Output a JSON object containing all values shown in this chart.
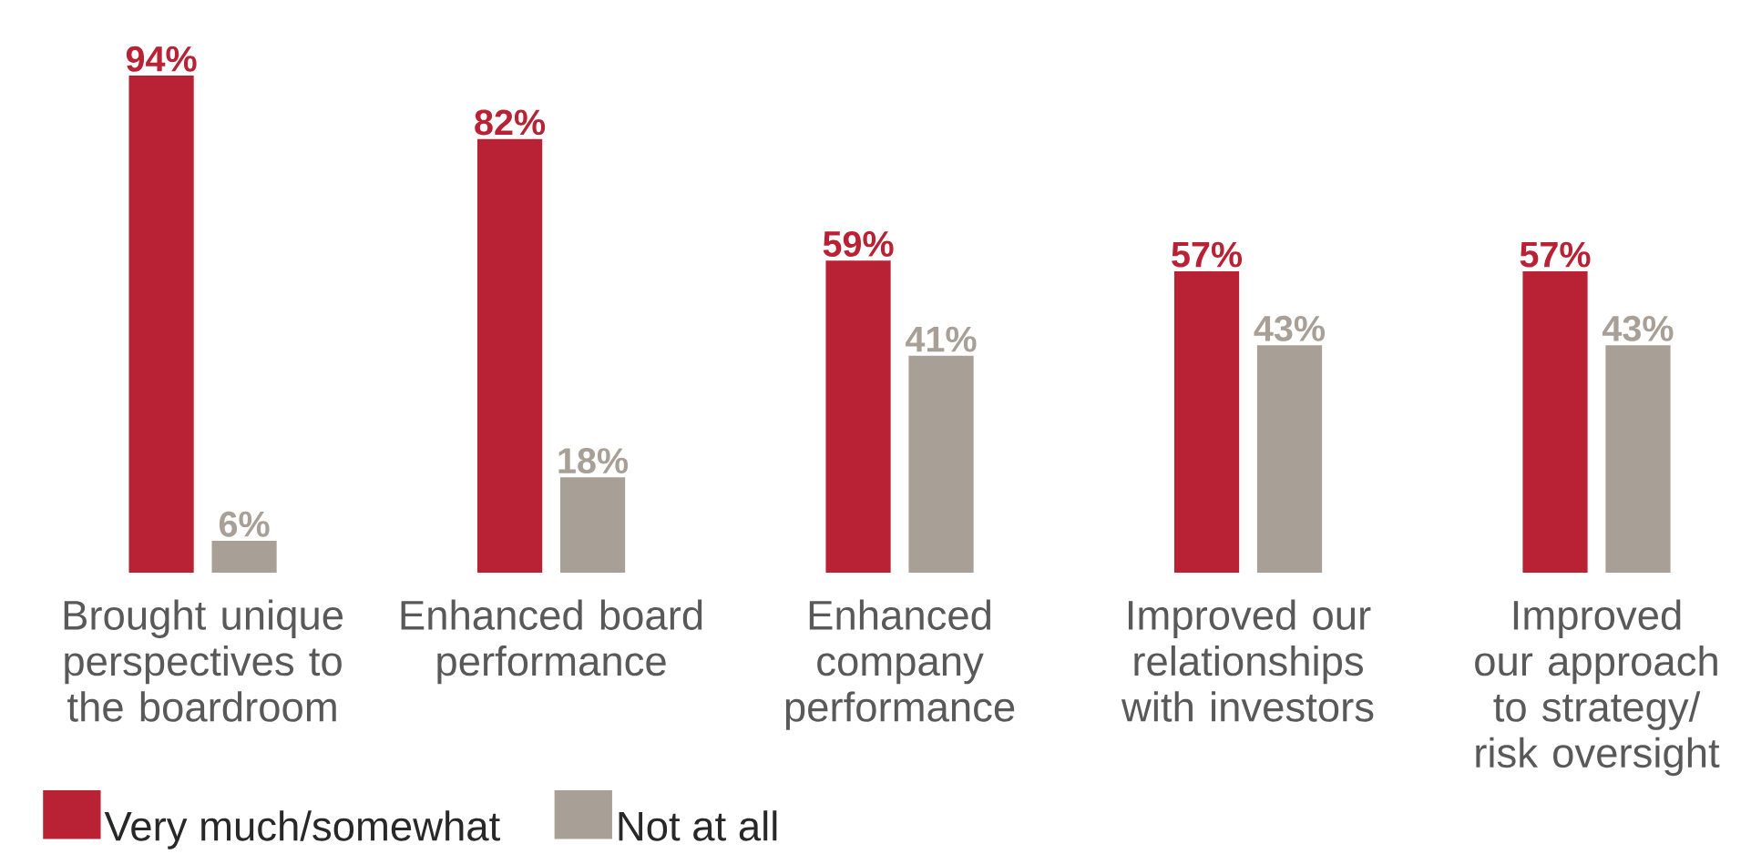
{
  "chart_data": {
    "type": "bar",
    "categories": [
      "Brought unique perspectives to the boardroom",
      "Enhanced board performance",
      "Enhanced company performance",
      "Improved our relationships with investors",
      "Improved our approach to strategy/ risk oversight"
    ],
    "series": [
      {
        "name": "Very much/somewhat",
        "color": "#b82234",
        "values": [
          94,
          82,
          59,
          57,
          57
        ],
        "value_labels": [
          "94%",
          "82%",
          "59%",
          "57%",
          "57%"
        ]
      },
      {
        "name": "Not at all",
        "color": "#a89f96",
        "values": [
          6,
          18,
          41,
          43,
          43
        ],
        "value_labels": [
          "6%",
          "18%",
          "41%",
          "43%",
          "43%"
        ]
      }
    ],
    "legend": "bottom left"
  }
}
